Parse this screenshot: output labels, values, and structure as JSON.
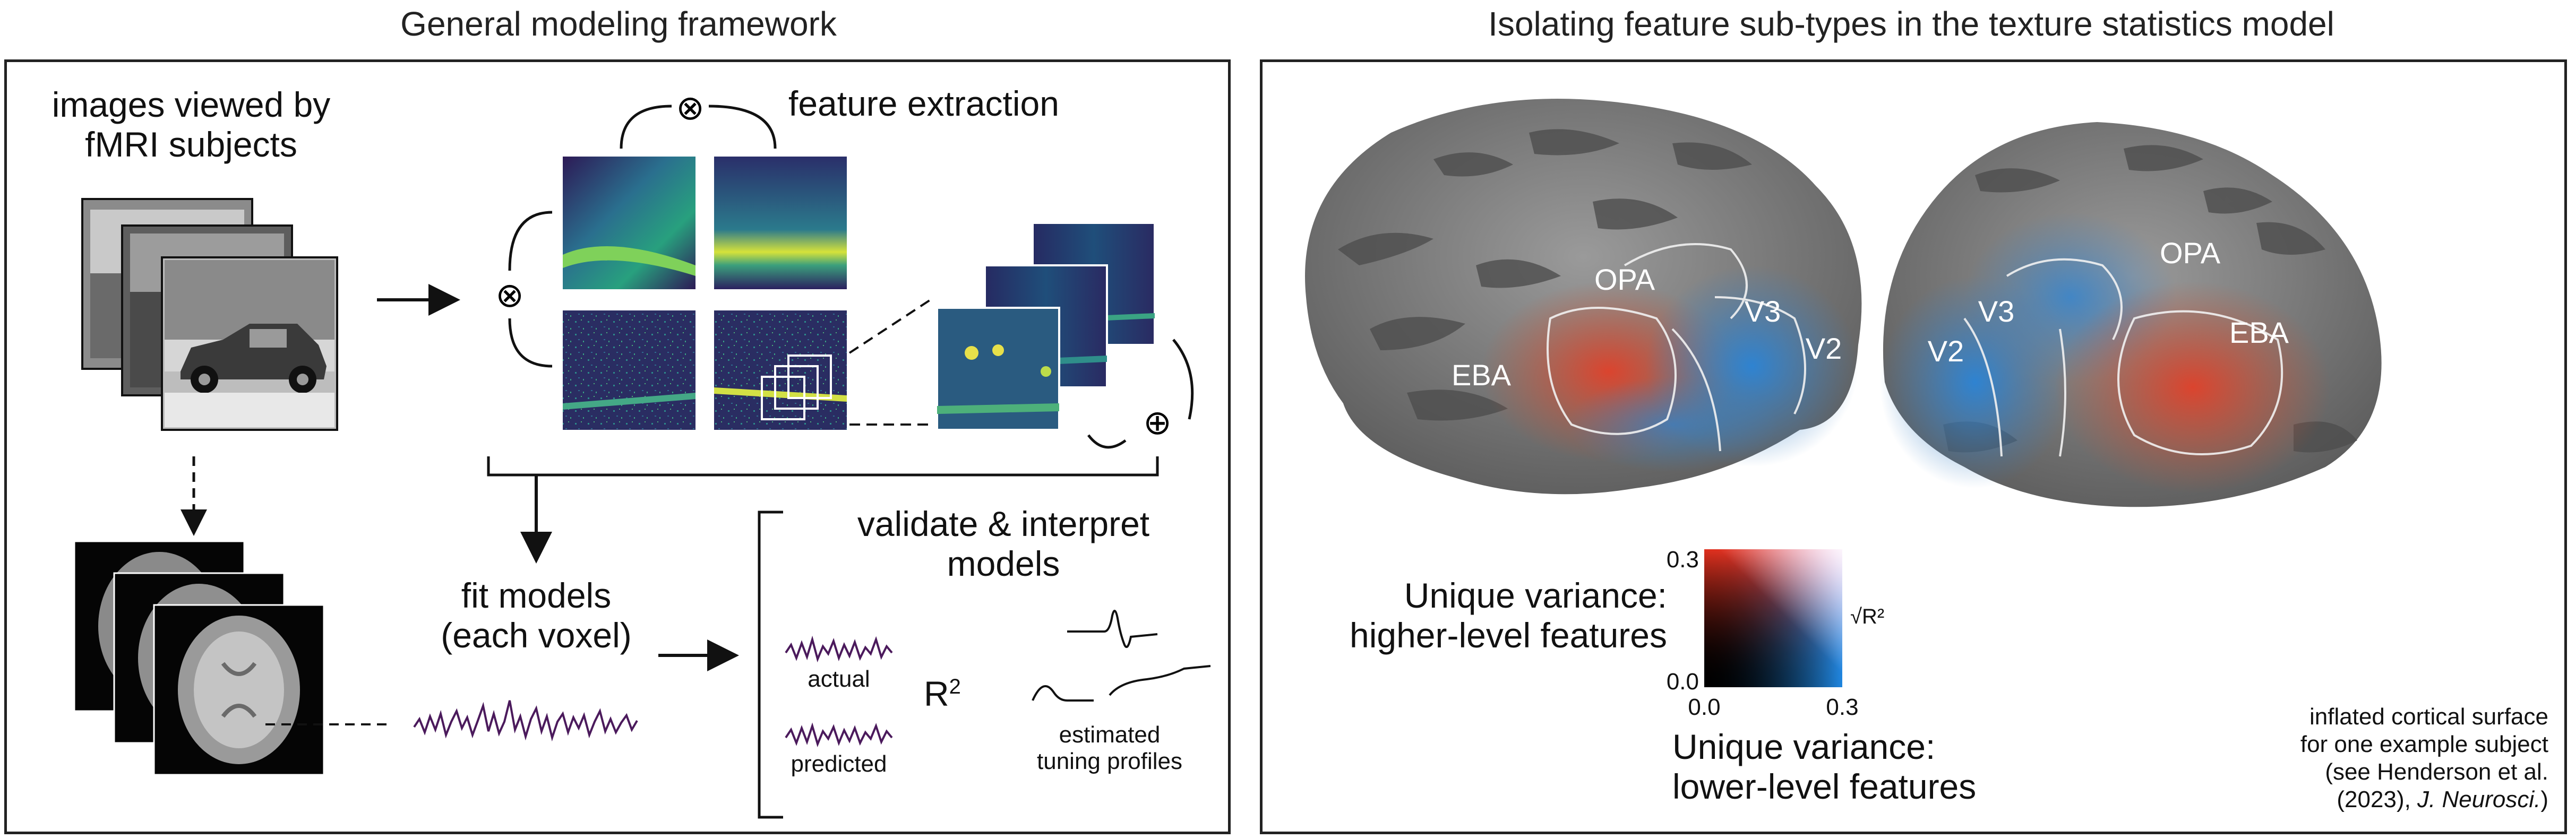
{
  "left_panel": {
    "title": "General modeling framework",
    "images_label_line1": "images viewed by",
    "images_label_line2": "fMRI subjects",
    "feature_label": "feature extraction",
    "fit_label_line1": "fit models",
    "fit_label_line2": "(each voxel)",
    "validate_label_line1": "validate & interpret",
    "validate_label_line2": "models",
    "actual_label": "actual",
    "predicted_label": "predicted",
    "r2_base": "R",
    "r2_sup": "2",
    "tuning_label_line1": "estimated",
    "tuning_label_line2": "tuning profiles",
    "multiply_symbol": "⊗",
    "add_symbol": "⊕"
  },
  "right_panel": {
    "title": "Isolating feature sub-types in the texture statistics model",
    "roi_labels": {
      "opa_left": "OPA",
      "v3_left": "V3",
      "v2_left": "V2",
      "eba_left": "EBA",
      "opa_right": "OPA",
      "v3_right": "V3",
      "v2_right": "V2",
      "eba_right": "EBA"
    },
    "y_axis_label_line1": "Unique variance:",
    "y_axis_label_line2": "higher-level features",
    "x_axis_label_line1": "Unique variance:",
    "x_axis_label_line2": "lower-level features",
    "cbar_y_max": "0.3",
    "cbar_y_min": "0.0",
    "cbar_x_min": "0.0",
    "cbar_x_max": "0.3",
    "cbar_unit": "√R²",
    "caption_line1": "inflated cortical surface",
    "caption_line2": "for one example subject",
    "caption_line3": "(see Henderson et al.",
    "caption_line4_pre": "(2023), ",
    "caption_line4_journal": "J. Neurosci.",
    "caption_line4_post": ")"
  },
  "colors": {
    "frame": "#222222",
    "viridis_dark": "#3b1f63",
    "viridis_mid": "#2a788e",
    "viridis_bright": "#fde725",
    "signal_purple": "#4b1a5c",
    "brain_gray": "#7a7a7a",
    "brain_dark": "#4a4a4a",
    "red_effect": "#d9412b",
    "blue_effect": "#2c7fd1"
  }
}
